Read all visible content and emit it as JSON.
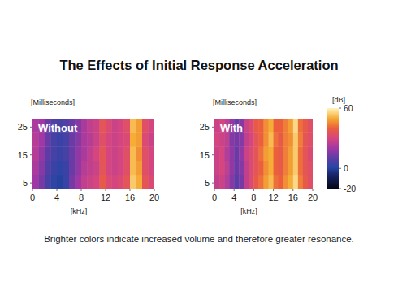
{
  "title": "The Effects of Initial Response Acceleration",
  "caption": "Brighter colors indicate increased volume and therefore greater resonance.",
  "colorbar": {
    "label": "[dB]",
    "range": [
      -20,
      60
    ],
    "ticks": [
      60,
      0,
      -20
    ]
  },
  "chart_data": [
    {
      "type": "heatmap",
      "title": "Without",
      "x_label": "[kHz]",
      "y_label": "[Milliseconds]",
      "xlim": [
        0,
        20
      ],
      "xticks": [
        0,
        4,
        8,
        12,
        16,
        20
      ],
      "ylim": [
        3,
        28
      ],
      "yticks": [
        5,
        15,
        25
      ],
      "cells": [
        [
          20,
          14,
          6,
          2,
          0,
          3,
          14,
          20,
          26,
          28,
          30,
          38,
          32,
          30,
          32,
          36,
          54,
          50,
          36,
          32
        ],
        [
          22,
          16,
          8,
          4,
          2,
          4,
          12,
          18,
          24,
          26,
          28,
          36,
          30,
          28,
          30,
          34,
          52,
          48,
          34,
          30
        ],
        [
          24,
          18,
          10,
          6,
          4,
          6,
          12,
          18,
          22,
          26,
          30,
          36,
          30,
          28,
          30,
          34,
          52,
          46,
          34,
          30
        ],
        [
          24,
          20,
          12,
          6,
          4,
          6,
          12,
          16,
          22,
          24,
          28,
          34,
          30,
          28,
          30,
          32,
          50,
          48,
          32,
          28
        ],
        [
          22,
          20,
          12,
          8,
          6,
          8,
          12,
          16,
          22,
          26,
          28,
          36,
          32,
          28,
          30,
          34,
          52,
          48,
          34,
          30
        ]
      ]
    },
    {
      "type": "heatmap",
      "title": "With",
      "x_label": "[kHz]",
      "y_label": "[Milliseconds]",
      "xlim": [
        0,
        20
      ],
      "xticks": [
        0,
        4,
        8,
        12,
        16,
        20
      ],
      "ylim": [
        3,
        28
      ],
      "yticks": [
        5,
        15,
        25
      ],
      "cells": [
        [
          26,
          28,
          24,
          16,
          10,
          14,
          26,
          32,
          38,
          42,
          48,
          52,
          42,
          40,
          46,
          50,
          56,
          44,
          38,
          34
        ],
        [
          28,
          30,
          26,
          18,
          12,
          16,
          26,
          32,
          36,
          40,
          46,
          50,
          40,
          38,
          44,
          48,
          54,
          42,
          36,
          34
        ],
        [
          28,
          30,
          24,
          18,
          12,
          18,
          28,
          32,
          36,
          42,
          48,
          50,
          40,
          38,
          44,
          48,
          54,
          42,
          36,
          32
        ],
        [
          30,
          28,
          26,
          16,
          14,
          16,
          26,
          30,
          36,
          40,
          46,
          52,
          42,
          38,
          44,
          46,
          54,
          44,
          36,
          34
        ],
        [
          28,
          30,
          26,
          18,
          12,
          16,
          28,
          32,
          38,
          40,
          46,
          50,
          40,
          40,
          44,
          48,
          56,
          42,
          38,
          34
        ]
      ]
    }
  ]
}
